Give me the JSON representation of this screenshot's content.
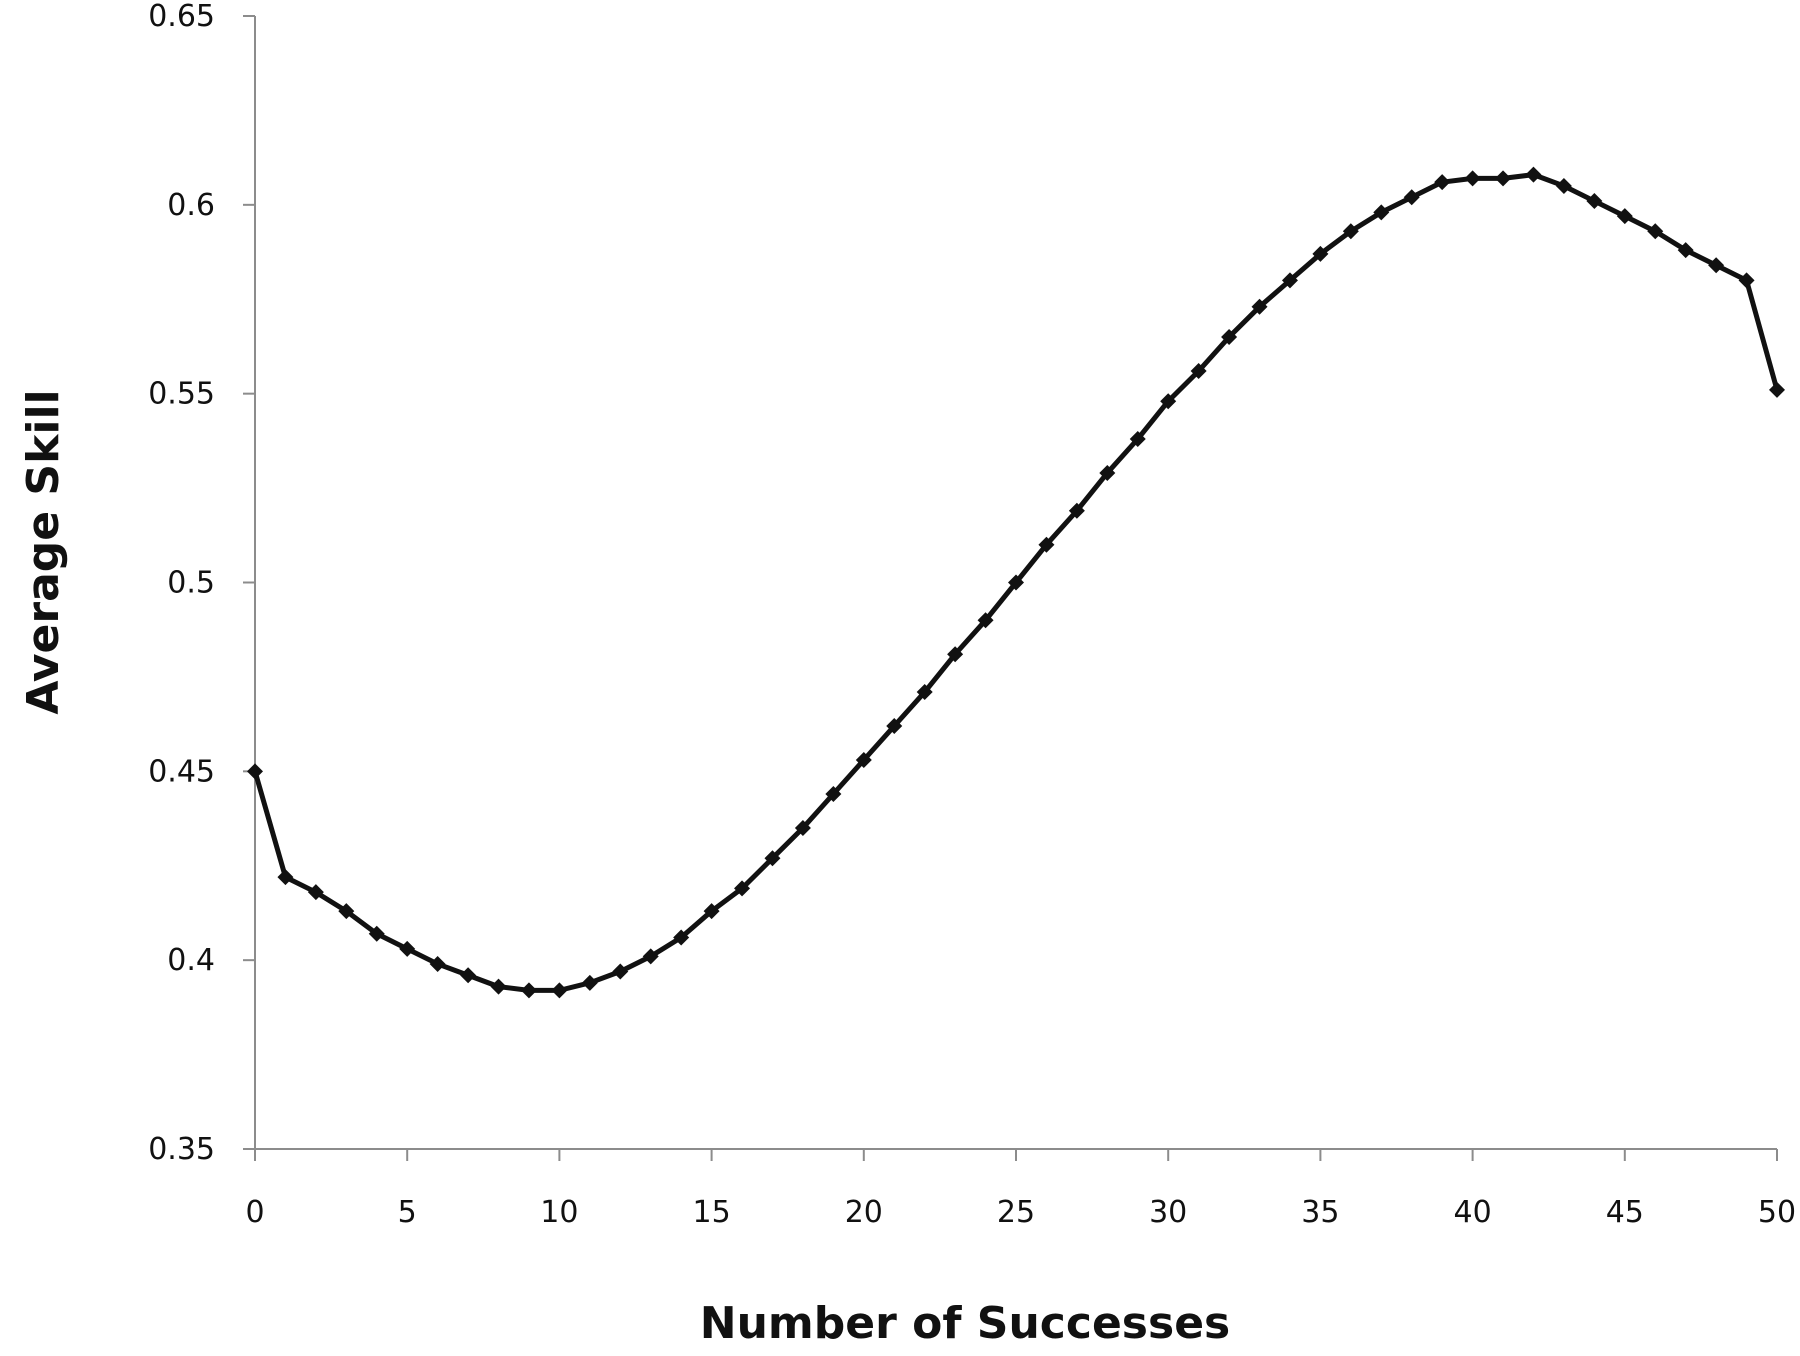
{
  "chart_data": {
    "type": "line",
    "title": "",
    "xlabel": "Number of Successes",
    "ylabel": "Average Skill",
    "xlim": [
      0,
      50
    ],
    "ylim": [
      0.35,
      0.65
    ],
    "xticks": [
      "0",
      "5",
      "10",
      "15",
      "20",
      "25",
      "30",
      "35",
      "40",
      "45",
      "50"
    ],
    "yticks": [
      "0.35",
      "0.4",
      "0.45",
      "0.5",
      "0.55",
      "0.6",
      "0.65"
    ],
    "grid": false,
    "legend": "none",
    "series": [
      {
        "color": "#111111",
        "marker": "diamond",
        "x": [
          0,
          1,
          2,
          3,
          4,
          5,
          6,
          7,
          8,
          9,
          10,
          11,
          12,
          13,
          14,
          15,
          16,
          17,
          18,
          19,
          20,
          21,
          22,
          23,
          24,
          25,
          26,
          27,
          28,
          29,
          30,
          31,
          32,
          33,
          34,
          35,
          36,
          37,
          38,
          39,
          40,
          41,
          42,
          43,
          44,
          45,
          46,
          47,
          48,
          49,
          50
        ],
        "y": [
          0.45,
          0.422,
          0.418,
          0.413,
          0.407,
          0.403,
          0.399,
          0.396,
          0.393,
          0.392,
          0.392,
          0.394,
          0.397,
          0.401,
          0.406,
          0.413,
          0.419,
          0.427,
          0.435,
          0.444,
          0.453,
          0.462,
          0.471,
          0.481,
          0.49,
          0.5,
          0.51,
          0.519,
          0.529,
          0.538,
          0.548,
          0.556,
          0.565,
          0.573,
          0.58,
          0.587,
          0.593,
          0.598,
          0.602,
          0.606,
          0.607,
          0.607,
          0.608,
          0.605,
          0.601,
          0.597,
          0.593,
          0.588,
          0.584,
          0.58,
          0.551
        ]
      }
    ]
  }
}
